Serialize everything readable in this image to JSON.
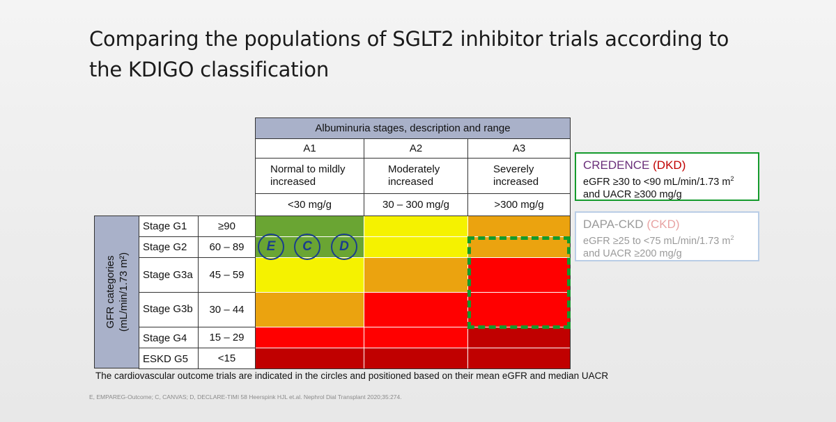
{
  "title": "Comparing the populations of SGLT2 inhibitor trials according to the KDIGO classification",
  "albuminuria": {
    "header": "Albuminuria stages, description and range",
    "columns": [
      {
        "stage": "A1",
        "description": "Normal to mildly increased",
        "range": "<30 mg/g"
      },
      {
        "stage": "A2",
        "description": "Moderately increased",
        "range": "30 – 300 mg/g"
      },
      {
        "stage": "A3",
        "description": "Severely increased",
        "range": ">300 mg/g"
      }
    ]
  },
  "gfr": {
    "axis_label_line1": "GFR categories",
    "axis_label_line2": "(mL/min/1.73 m²)",
    "rows": [
      {
        "stage": "Stage G1",
        "range": "≥90",
        "colors": [
          "green",
          "yellow",
          "orange"
        ]
      },
      {
        "stage": "Stage G2",
        "range": "60 – 89",
        "colors": [
          "green",
          "yellow",
          "orange"
        ]
      },
      {
        "stage": "Stage G3a",
        "range": "45 – 59",
        "colors": [
          "yellow",
          "orange",
          "red"
        ]
      },
      {
        "stage": "Stage G3b",
        "range": "30 – 44",
        "colors": [
          "orange",
          "red",
          "red"
        ]
      },
      {
        "stage": "Stage G4",
        "range": "15 – 29",
        "colors": [
          "red",
          "red",
          "dark-red"
        ]
      },
      {
        "stage": "ESKD G5",
        "range": "<15",
        "colors": [
          "dark-red",
          "dark-red",
          "dark-red"
        ]
      }
    ]
  },
  "trials": [
    {
      "letter": "E"
    },
    {
      "letter": "C"
    },
    {
      "letter": "D"
    }
  ],
  "legend": {
    "credence": {
      "name": "CREDENCE",
      "abbr": "(DKD)",
      "line1": "eGFR ≥30 to <90 mL/min/1.73 m",
      "line2": "and UACR ≥300 mg/g",
      "border": "#149a2c"
    },
    "dapa": {
      "name": "DAPA-CKD",
      "abbr": "(CKD)",
      "line1": "eGFR ≥25 to <75 mL/min/1.73 m",
      "line2": "and UACR ≥200 mg/g",
      "border": "#b9cde6"
    }
  },
  "colors": {
    "green": "#6aa533",
    "yellow": "#f5f200",
    "orange": "#eba30f",
    "red": "#ff0000",
    "dark-red": "#c00000",
    "header": "#a9b1c9",
    "dashed": "#149a2c",
    "circle": "#1a3e8c"
  },
  "footnote": "The cardiovascular outcome trials are indicated in the circles and positioned based on their mean eGFR and median UACR",
  "reference": "E, EMPAREG-Outcome; C, CANVAS; D, DECLARE-TIMI 58 Heerspink HJL et.al. Nephrol Dial Transplant 2020;35:274."
}
